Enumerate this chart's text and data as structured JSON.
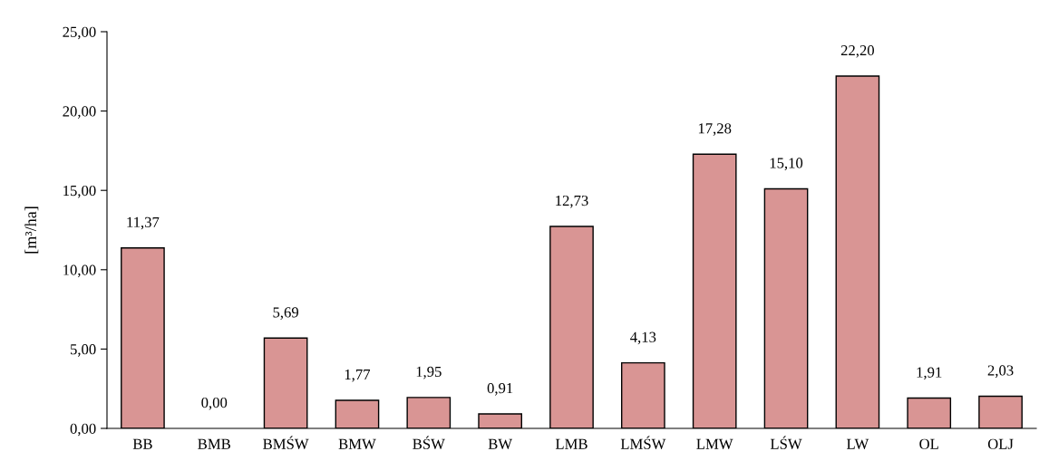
{
  "chart_data": {
    "type": "bar",
    "ylabel": "[m³/ha]",
    "categories": [
      "BB",
      "BMB",
      "BMŚW",
      "BMW",
      "BŚW",
      "BW",
      "LMB",
      "LMŚW",
      "LMW",
      "LŚW",
      "LW",
      "OL",
      "OLJ"
    ],
    "values": [
      11.37,
      0.0,
      5.69,
      1.77,
      1.95,
      0.91,
      12.73,
      4.13,
      17.28,
      15.1,
      22.2,
      1.91,
      2.03
    ],
    "value_labels": [
      "11,37",
      "0,00",
      "5,69",
      "1,77",
      "1,95",
      "0,91",
      "12,73",
      "4,13",
      "17,28",
      "15,10",
      "22,20",
      "1,91",
      "2,03"
    ],
    "color": "#d99594",
    "ylim": [
      0,
      25
    ],
    "yticks": [
      {
        "value": 0,
        "label": "0,00"
      },
      {
        "value": 5,
        "label": "5,00"
      },
      {
        "value": 10,
        "label": "10,00"
      },
      {
        "value": 15,
        "label": "15,00"
      },
      {
        "value": 20,
        "label": "20,00"
      },
      {
        "value": 25,
        "label": "25,00"
      }
    ],
    "grid": false,
    "legend": false
  }
}
